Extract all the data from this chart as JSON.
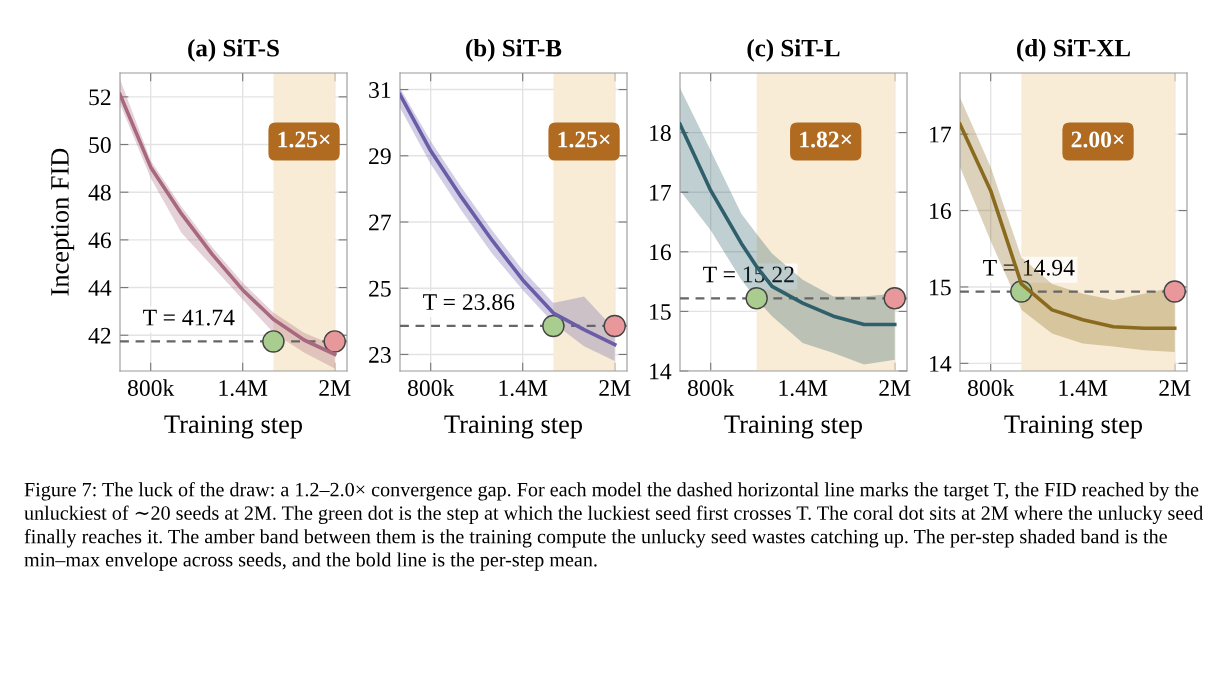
{
  "chart_data": [
    {
      "type": "line",
      "title": "(a) SiT-S",
      "xlabel": "Training step",
      "ylabel": "Inception FID",
      "xlim": [
        600000,
        2080000
      ],
      "xticks": [
        {
          "value": 800000,
          "label": "800k"
        },
        {
          "value": 1400000,
          "label": "1.4M"
        },
        {
          "value": 2000000,
          "label": "2M"
        }
      ],
      "ylim": [
        40.5,
        53
      ],
      "yticks": [
        42,
        44,
        46,
        48,
        50,
        52
      ],
      "grid": true,
      "x": [
        600000,
        800000,
        1000000,
        1200000,
        1400000,
        1600000,
        1800000,
        2000000
      ],
      "series": [
        {
          "color": "#a8687f",
          "values": [
            52.1,
            49.05,
            47.1,
            45.4,
            43.9,
            42.67,
            41.8,
            41.2
          ],
          "lower": [
            51.7,
            48.6,
            46.3,
            44.9,
            43.5,
            42.1,
            41.28,
            40.6
          ],
          "upper": [
            52.74,
            49.33,
            47.4,
            45.7,
            44.2,
            42.95,
            42.1,
            41.56
          ]
        },
        {
          "type": "scatter",
          "x": [
            1600000
          ],
          "values": [
            41.74
          ],
          "color": "#a9cc8f"
        },
        {
          "type": "scatter",
          "x": [
            2000000
          ],
          "values": [
            41.74
          ],
          "color": "#e8979a"
        }
      ],
      "bands": [
        {
          "axis": "x",
          "from": 1600000,
          "to": 2000000,
          "label": "1.25×",
          "color": "#f8ecd6"
        }
      ],
      "ref_lines": [
        {
          "axis": "y",
          "value": 41.74,
          "label": "T = 41.74",
          "line_style": "dashed",
          "color": "#666666"
        }
      ],
      "annotations": [
        "Figure 7: The luck of the draw: a 1.2–2.0× convergence gap. For each model the dashed horizontal line marks the target T, the FID reached by the unluckiest of ∼20 seeds at 2M. The green dot is the step at which the luckiest seed first crosses T. The coral dot sits at 2M where the unlucky seed finally reaches it. The amber band between them is the training compute the unlucky seed wastes catching up. The per-step shaded band is the min–max envelope across seeds, and the bold line is the per-step mean."
      ]
    },
    {
      "type": "line",
      "title": "(b) SiT-B",
      "xlabel": "Training step",
      "xlim": [
        600000,
        2080000
      ],
      "xticks": [
        {
          "value": 800000,
          "label": "800k"
        },
        {
          "value": 1400000,
          "label": "1.4M"
        },
        {
          "value": 2000000,
          "label": "2M"
        }
      ],
      "ylim": [
        22.5,
        31.5
      ],
      "yticks": [
        23,
        25,
        27,
        29,
        31
      ],
      "grid": true,
      "x": [
        600000,
        800000,
        1000000,
        1200000,
        1400000,
        1600000,
        1800000,
        2000000
      ],
      "series": [
        {
          "color": "#6b5ca8",
          "values": [
            30.85,
            29.15,
            27.75,
            26.45,
            25.25,
            24.25,
            23.75,
            23.3
          ],
          "lower": [
            30.45,
            28.75,
            27.35,
            26.05,
            24.95,
            23.95,
            23.25,
            22.8
          ],
          "upper": [
            31.05,
            29.45,
            28.05,
            26.75,
            25.55,
            24.55,
            24.75,
            23.75
          ]
        },
        {
          "type": "scatter",
          "x": [
            1600000
          ],
          "values": [
            23.86
          ],
          "color": "#a9cc8f"
        },
        {
          "type": "scatter",
          "x": [
            2000000
          ],
          "values": [
            23.86
          ],
          "color": "#e8979a"
        }
      ],
      "bands": [
        {
          "axis": "x",
          "from": 1600000,
          "to": 2000000,
          "label": "1.25×",
          "color": "#f8ecd6"
        }
      ],
      "ref_lines": [
        {
          "axis": "y",
          "value": 23.86,
          "label": "T = 23.86",
          "line_style": "dashed",
          "color": "#666666"
        }
      ]
    },
    {
      "type": "line",
      "title": "(c) SiT-L",
      "xlabel": "Training step",
      "xlim": [
        600000,
        2080000
      ],
      "xticks": [
        {
          "value": 800000,
          "label": "800k"
        },
        {
          "value": 1400000,
          "label": "1.4M"
        },
        {
          "value": 2000000,
          "label": "2M"
        }
      ],
      "ylim": [
        14,
        19
      ],
      "yticks": [
        14,
        15,
        16,
        17,
        18
      ],
      "grid": true,
      "x": [
        600000,
        800000,
        1000000,
        1100000,
        1200000,
        1400000,
        1600000,
        1800000,
        2000000
      ],
      "series": [
        {
          "color": "#2f5f6b",
          "values": [
            18.14,
            17.03,
            16.14,
            15.75,
            15.42,
            15.14,
            14.92,
            14.78,
            14.78
          ],
          "lower": [
            17.03,
            16.36,
            15.53,
            15.2,
            14.92,
            14.47,
            14.3,
            14.11,
            14.19
          ],
          "upper": [
            18.75,
            17.7,
            16.64,
            16.3,
            15.97,
            15.53,
            15.25,
            15.25,
            15.3
          ]
        },
        {
          "type": "scatter",
          "x": [
            1100000
          ],
          "values": [
            15.22
          ],
          "color": "#a9cc8f"
        },
        {
          "type": "scatter",
          "x": [
            2000000
          ],
          "values": [
            15.22
          ],
          "color": "#e8979a"
        }
      ],
      "bands": [
        {
          "axis": "x",
          "from": 1100000,
          "to": 2000000,
          "label": "1.82×",
          "color": "#f8ecd6"
        }
      ],
      "ref_lines": [
        {
          "axis": "y",
          "value": 15.22,
          "label": "T = 15.22",
          "line_style": "dashed",
          "color": "#666666"
        }
      ]
    },
    {
      "type": "line",
      "title": "(d) SiT-XL",
      "xlabel": "Training step",
      "xlim": [
        600000,
        2080000
      ],
      "xticks": [
        {
          "value": 800000,
          "label": "800k"
        },
        {
          "value": 1400000,
          "label": "1.4M"
        },
        {
          "value": 2000000,
          "label": "2M"
        }
      ],
      "ylim": [
        13.9,
        17.8
      ],
      "yticks": [
        14,
        15,
        16,
        17
      ],
      "grid": true,
      "x": [
        600000,
        800000,
        1000000,
        1200000,
        1400000,
        1600000,
        1800000,
        2000000
      ],
      "series": [
        {
          "color": "#8a6a1e",
          "values": [
            17.13,
            16.26,
            15.04,
            14.7,
            14.57,
            14.48,
            14.46,
            14.46
          ],
          "lower": [
            16.57,
            15.6,
            14.7,
            14.39,
            14.26,
            14.22,
            14.17,
            14.15
          ],
          "upper": [
            17.48,
            16.57,
            15.39,
            15.04,
            14.91,
            14.83,
            14.91,
            15.0
          ]
        },
        {
          "type": "scatter",
          "x": [
            1000000
          ],
          "values": [
            14.94
          ],
          "color": "#a9cc8f"
        },
        {
          "type": "scatter",
          "x": [
            2000000
          ],
          "values": [
            14.94
          ],
          "color": "#e8979a"
        }
      ],
      "bands": [
        {
          "axis": "x",
          "from": 1000000,
          "to": 2000000,
          "label": "2.00×",
          "color": "#f8ecd6"
        }
      ],
      "ref_lines": [
        {
          "axis": "y",
          "value": 14.94,
          "label": "T = 14.94",
          "line_style": "dashed",
          "color": "#666666"
        }
      ]
    }
  ]
}
